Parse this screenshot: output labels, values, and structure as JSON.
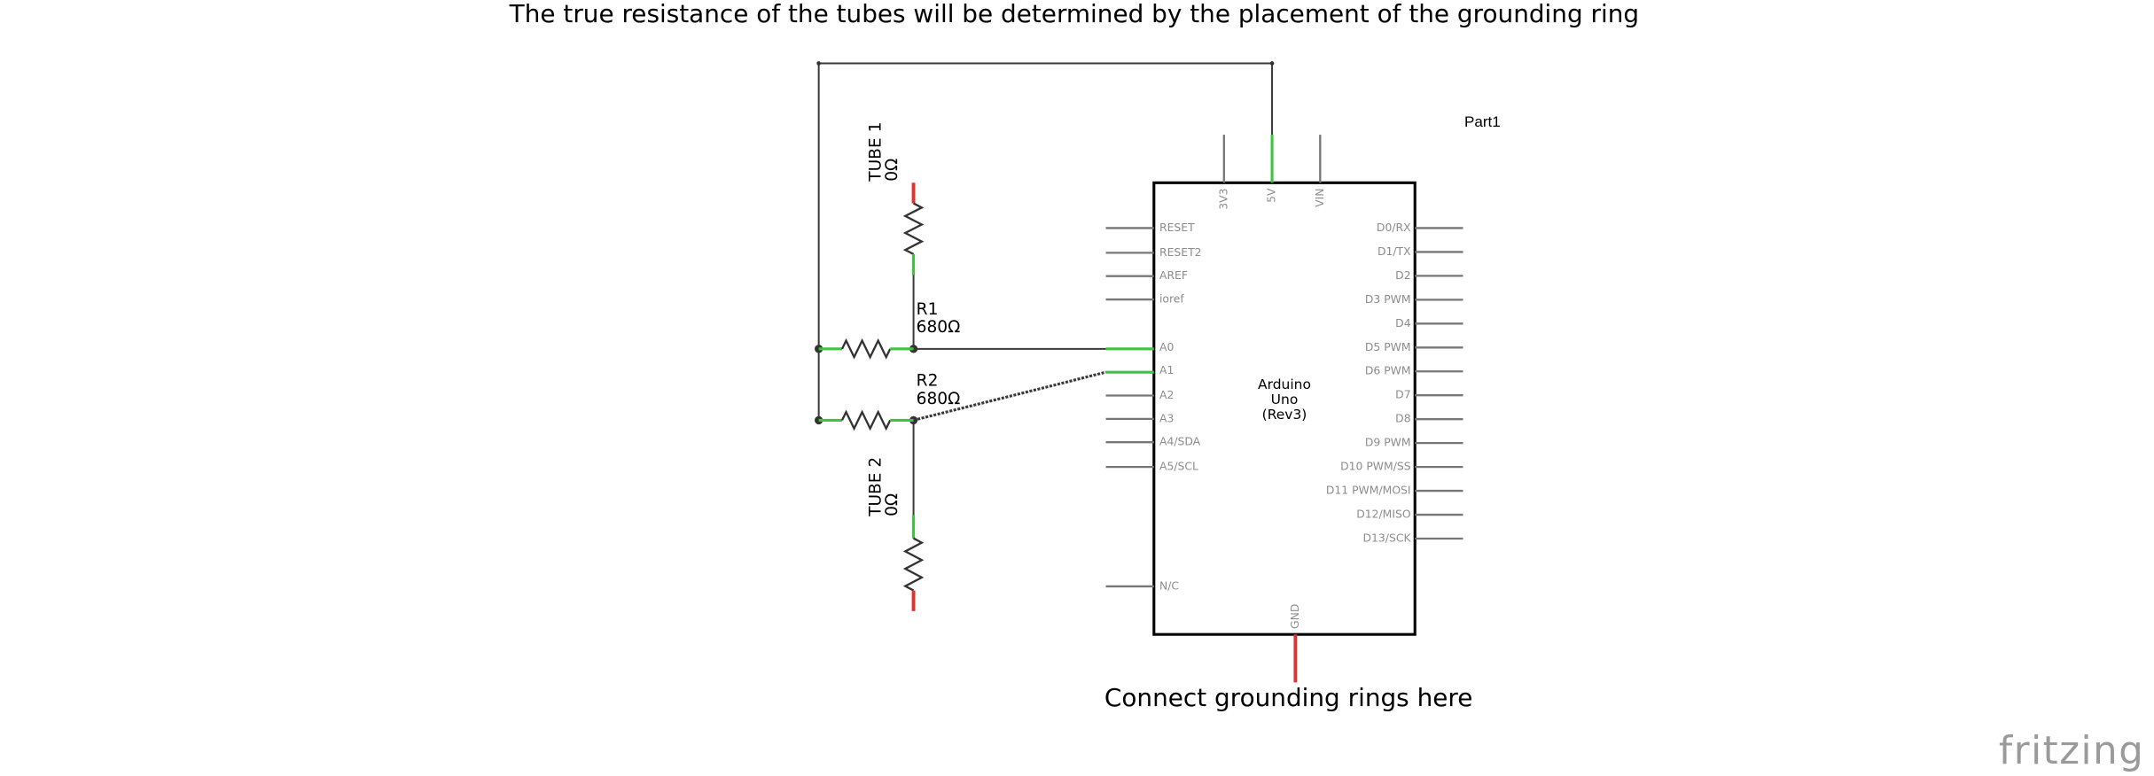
{
  "title": "The true resistance of the tubes will be determined by the placement of the grounding ring",
  "note": "Connect grounding rings here",
  "part_label": "Part1",
  "components": [
    {
      "name": "TUBE 1",
      "value": "0Ω"
    },
    {
      "name": "R1",
      "value": "680Ω"
    },
    {
      "name": "R2",
      "value": "680Ω"
    },
    {
      "name": "TUBE 2",
      "value": "0Ω"
    }
  ],
  "arduino": {
    "label": [
      "Arduino",
      "Uno",
      "(Rev3)"
    ],
    "left_pins": [
      "RESET",
      "RESET2",
      "AREF",
      "ioref",
      "A0",
      "A1",
      "A2",
      "A3",
      "A4/SDA",
      "A5/SCL",
      "N/C"
    ],
    "right_pins": [
      "D0/RX",
      "D1/TX",
      "D2",
      "D3 PWM",
      "D4",
      "D5 PWM",
      "D6 PWM",
      "D7",
      "D8",
      "D9 PWM",
      "D10 PWM/SS",
      "D11 PWM/MOSI",
      "D12/MISO",
      "D13/SCK"
    ],
    "top_pins": [
      "3V3",
      "5V",
      "VIN"
    ],
    "bottom_pins": [
      "GND"
    ]
  },
  "logo": "fritzing"
}
